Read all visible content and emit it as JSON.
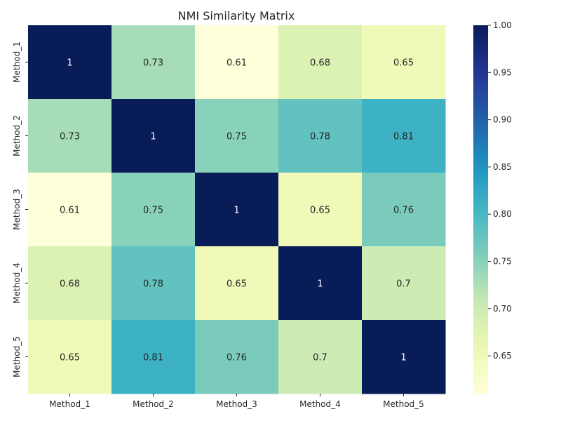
{
  "chart_data": {
    "type": "heatmap",
    "title": "NMI Similarity Matrix",
    "xlabel": "",
    "ylabel": "",
    "x_categories": [
      "Method_1",
      "Method_2",
      "Method_3",
      "Method_4",
      "Method_5"
    ],
    "y_categories": [
      "Method_1",
      "Method_2",
      "Method_3",
      "Method_4",
      "Method_5"
    ],
    "values": [
      [
        1,
        0.73,
        0.61,
        0.68,
        0.65
      ],
      [
        0.73,
        1,
        0.75,
        0.78,
        0.81
      ],
      [
        0.61,
        0.75,
        1,
        0.65,
        0.76
      ],
      [
        0.68,
        0.78,
        0.65,
        1,
        0.7
      ],
      [
        0.65,
        0.81,
        0.76,
        0.7,
        1
      ]
    ],
    "cell_labels": [
      [
        "1",
        "0.73",
        "0.61",
        "0.68",
        "0.65"
      ],
      [
        "0.73",
        "1",
        "0.75",
        "0.78",
        "0.81"
      ],
      [
        "0.61",
        "0.75",
        "1",
        "0.65",
        "0.76"
      ],
      [
        "0.68",
        "0.78",
        "0.65",
        "1",
        "0.7"
      ],
      [
        "0.65",
        "0.81",
        "0.76",
        "0.7",
        "1"
      ]
    ],
    "colorbar": {
      "min": 0.61,
      "max": 1.0,
      "ticks": [
        0.65,
        0.7,
        0.75,
        0.8,
        0.85,
        0.9,
        0.95,
        1.0
      ],
      "tick_labels": [
        "0.65",
        "0.70",
        "0.75",
        "0.80",
        "0.85",
        "0.90",
        "0.95",
        "1.00"
      ]
    },
    "colormap": "YlGnBu",
    "grid": false
  }
}
